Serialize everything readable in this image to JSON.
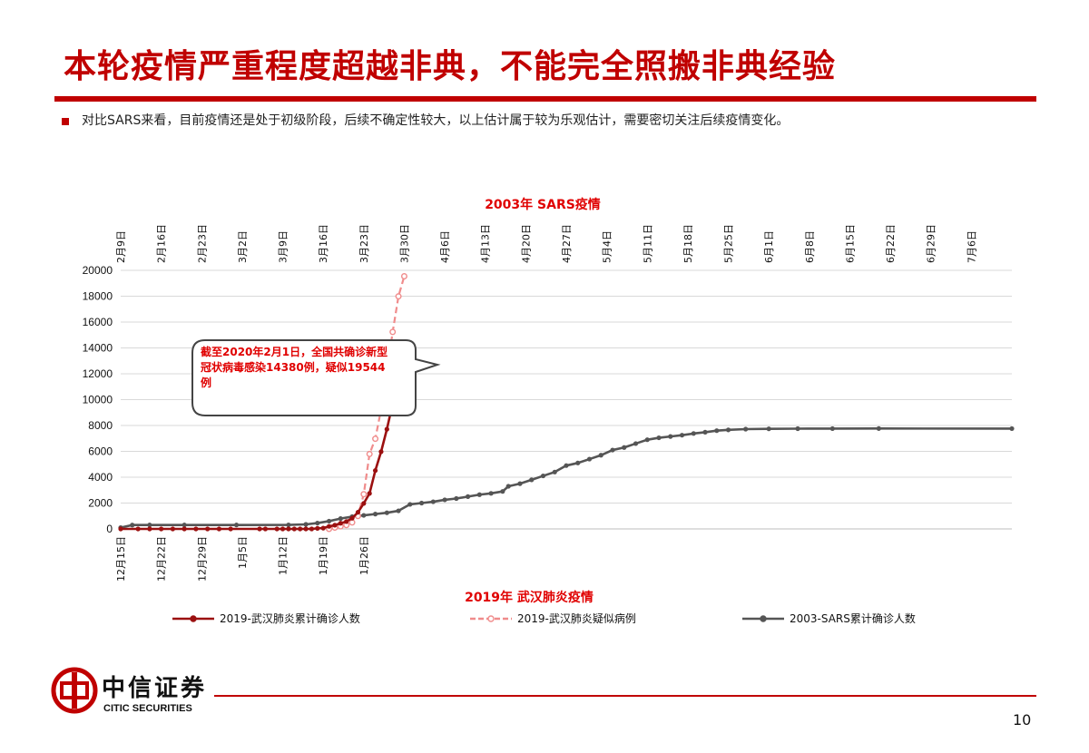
{
  "slide": {
    "title": "本轮疫情严重程度超越非典，不能完全照搬非典经验",
    "bullet": "对比SARS来看，目前疫情还是处于初级阶段，后续不确定性较大，以上估计属于较为乐观估计，需要密切关注后续疫情变化。",
    "page_number": "10"
  },
  "brand": {
    "name_cn": "中信证券",
    "name_en": "CITIC SECURITIES",
    "color": "#c00000"
  },
  "chart_data": {
    "type": "line",
    "top_axis_title": "2003年 SARS疫情",
    "bottom_axis_title": "2019年 武汉肺炎疫情",
    "ylim": [
      0,
      20000
    ],
    "yticks": [
      "0",
      "2000",
      "4000",
      "6000",
      "8000",
      "10000",
      "12000",
      "14000",
      "16000",
      "18000",
      "20000"
    ],
    "grid": true,
    "legend_position": "bottom",
    "top_axis": {
      "x_domain": [
        "2003-02-09",
        "2003-07-13"
      ],
      "tick_labels": [
        "2月9日",
        "2月16日",
        "2月23日",
        "3月2日",
        "3月9日",
        "3月16日",
        "3月23日",
        "3月30日",
        "4月6日",
        "4月13日",
        "4月20日",
        "4月27日",
        "5月4日",
        "5月11日",
        "5月18日",
        "5月25日",
        "6月1日",
        "6月8日",
        "6月15日",
        "6月22日",
        "6月29日",
        "7月6日"
      ],
      "tick_dates": [
        "2003-02-09",
        "2003-02-16",
        "2003-02-23",
        "2003-03-02",
        "2003-03-09",
        "2003-03-16",
        "2003-03-23",
        "2003-03-30",
        "2003-04-06",
        "2003-04-13",
        "2003-04-20",
        "2003-04-27",
        "2003-05-04",
        "2003-05-11",
        "2003-05-18",
        "2003-05-25",
        "2003-06-01",
        "2003-06-08",
        "2003-06-15",
        "2003-06-22",
        "2003-06-29",
        "2003-07-06"
      ]
    },
    "bottom_axis": {
      "x_domain": [
        "2019-12-15",
        "2020-05-17"
      ],
      "tick_labels": [
        "12月15日",
        "12月22日",
        "12月29日",
        "1月5日",
        "1月12日",
        "1月19日",
        "1月26日"
      ],
      "tick_dates": [
        "2019-12-15",
        "2019-12-22",
        "2019-12-29",
        "2020-01-05",
        "2020-01-12",
        "2020-01-19",
        "2020-01-26"
      ]
    },
    "annotation": {
      "text_line1": "截至2020年2月1日，全国共确诊新型",
      "text_line2": "冠状病毒感染14380例，疑似19544",
      "text_line3": "例",
      "color": "#e00000"
    },
    "series": [
      {
        "name": "2019-武汉肺炎累计确诊人数",
        "axis": "bottom",
        "color": "#9b1010",
        "marker": "filled-circle",
        "dash": false,
        "points": [
          [
            "2019-12-15",
            0
          ],
          [
            "2019-12-18",
            0
          ],
          [
            "2019-12-20",
            0
          ],
          [
            "2019-12-22",
            0
          ],
          [
            "2019-12-24",
            0
          ],
          [
            "2019-12-26",
            0
          ],
          [
            "2019-12-28",
            0
          ],
          [
            "2019-12-30",
            0
          ],
          [
            "2020-01-01",
            0
          ],
          [
            "2020-01-03",
            0
          ],
          [
            "2020-01-08",
            0
          ],
          [
            "2020-01-09",
            0
          ],
          [
            "2020-01-11",
            0
          ],
          [
            "2020-01-12",
            0
          ],
          [
            "2020-01-13",
            0
          ],
          [
            "2020-01-14",
            0
          ],
          [
            "2020-01-15",
            0
          ],
          [
            "2020-01-16",
            0
          ],
          [
            "2020-01-17",
            0
          ],
          [
            "2020-01-18",
            45
          ],
          [
            "2020-01-19",
            62
          ],
          [
            "2020-01-20",
            198
          ],
          [
            "2020-01-21",
            291
          ],
          [
            "2020-01-22",
            440
          ],
          [
            "2020-01-23",
            571
          ],
          [
            "2020-01-24",
            830
          ],
          [
            "2020-01-25",
            1287
          ],
          [
            "2020-01-26",
            1975
          ],
          [
            "2020-01-27",
            2744
          ],
          [
            "2020-01-28",
            4515
          ],
          [
            "2020-01-29",
            5974
          ],
          [
            "2020-01-30",
            7711
          ],
          [
            "2020-01-31",
            9692
          ],
          [
            "2020-02-01",
            11791
          ],
          [
            "2020-02-02",
            14380
          ]
        ]
      },
      {
        "name": "2019-武汉肺炎疑似病例",
        "axis": "bottom",
        "color": "#f08c8c",
        "marker": "open-circle",
        "dash": true,
        "points": [
          [
            "2020-01-20",
            0
          ],
          [
            "2020-01-21",
            100
          ],
          [
            "2020-01-22",
            200
          ],
          [
            "2020-01-23",
            300
          ],
          [
            "2020-01-24",
            500
          ],
          [
            "2020-01-25",
            1000
          ],
          [
            "2020-01-26",
            2684
          ],
          [
            "2020-01-27",
            5794
          ],
          [
            "2020-01-28",
            6973
          ],
          [
            "2020-01-29",
            9239
          ],
          [
            "2020-01-30",
            12167
          ],
          [
            "2020-01-31",
            15238
          ],
          [
            "2020-02-01",
            17988
          ],
          [
            "2020-02-02",
            19544
          ]
        ]
      },
      {
        "name": "2003-SARS累计确诊人数",
        "axis": "top",
        "color": "#555555",
        "marker": "filled-circle",
        "dash": false,
        "points": [
          [
            "2003-02-09",
            100
          ],
          [
            "2003-02-11",
            300
          ],
          [
            "2003-02-14",
            305
          ],
          [
            "2003-02-20",
            305
          ],
          [
            "2003-03-01",
            305
          ],
          [
            "2003-03-10",
            310
          ],
          [
            "2003-03-13",
            350
          ],
          [
            "2003-03-15",
            450
          ],
          [
            "2003-03-17",
            600
          ],
          [
            "2003-03-19",
            800
          ],
          [
            "2003-03-21",
            950
          ],
          [
            "2003-03-23",
            1050
          ],
          [
            "2003-03-25",
            1150
          ],
          [
            "2003-03-27",
            1250
          ],
          [
            "2003-03-29",
            1400
          ],
          [
            "2003-03-31",
            1900
          ],
          [
            "2003-04-02",
            2000
          ],
          [
            "2003-04-04",
            2100
          ],
          [
            "2003-04-06",
            2250
          ],
          [
            "2003-04-08",
            2350
          ],
          [
            "2003-04-10",
            2500
          ],
          [
            "2003-04-12",
            2650
          ],
          [
            "2003-04-14",
            2750
          ],
          [
            "2003-04-16",
            2900
          ],
          [
            "2003-04-17",
            3300
          ],
          [
            "2003-04-19",
            3500
          ],
          [
            "2003-04-21",
            3800
          ],
          [
            "2003-04-23",
            4100
          ],
          [
            "2003-04-25",
            4400
          ],
          [
            "2003-04-27",
            4900
          ],
          [
            "2003-04-29",
            5100
          ],
          [
            "2003-05-01",
            5400
          ],
          [
            "2003-05-03",
            5700
          ],
          [
            "2003-05-05",
            6100
          ],
          [
            "2003-05-07",
            6300
          ],
          [
            "2003-05-09",
            6600
          ],
          [
            "2003-05-11",
            6900
          ],
          [
            "2003-05-13",
            7050
          ],
          [
            "2003-05-15",
            7150
          ],
          [
            "2003-05-17",
            7250
          ],
          [
            "2003-05-19",
            7380
          ],
          [
            "2003-05-21",
            7480
          ],
          [
            "2003-05-23",
            7600
          ],
          [
            "2003-05-25",
            7660
          ],
          [
            "2003-05-28",
            7720
          ],
          [
            "2003-06-01",
            7740
          ],
          [
            "2003-06-06",
            7755
          ],
          [
            "2003-06-12",
            7760
          ],
          [
            "2003-06-20",
            7765
          ],
          [
            "2003-07-13",
            7760
          ]
        ]
      }
    ]
  }
}
